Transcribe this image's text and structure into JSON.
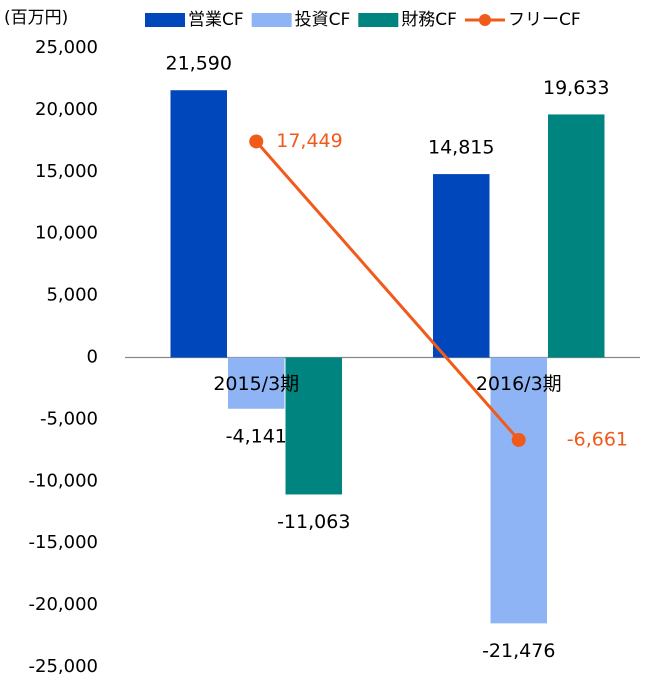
{
  "chart_data": {
    "type": "bar",
    "unit_label": "(百万円)",
    "categories": [
      "2015/3期",
      "2016/3期"
    ],
    "series": [
      {
        "name": "営業CF",
        "color": "#0047bb",
        "type": "bar",
        "values": [
          21590,
          14815
        ],
        "value_labels": [
          "21,590",
          "14,815"
        ]
      },
      {
        "name": "投資CF",
        "color": "#8fb4f5",
        "type": "bar",
        "values": [
          -4141,
          -21476
        ],
        "value_labels": [
          "-4,141",
          "-21,476"
        ]
      },
      {
        "name": "財務CF",
        "color": "#00847f",
        "type": "bar",
        "values": [
          -11063,
          19633
        ],
        "value_labels": [
          "-11,063",
          "19,633"
        ]
      },
      {
        "name": "フリーCF",
        "color": "#f05a1a",
        "type": "line",
        "values": [
          17449,
          -6661
        ],
        "value_labels": [
          "17,449",
          "-6,661"
        ]
      }
    ],
    "ylim": [
      -25000,
      25000
    ],
    "yticks": [
      {
        "value": 25000,
        "label": "25,000"
      },
      {
        "value": 20000,
        "label": "20,000"
      },
      {
        "value": 15000,
        "label": "15,000"
      },
      {
        "value": 10000,
        "label": "10,000"
      },
      {
        "value": 5000,
        "label": "5,000"
      },
      0,
      {
        "value": -5000,
        "label": "-5,000"
      },
      {
        "value": -10000,
        "label": "-10,000"
      },
      {
        "value": -15000,
        "label": "-15,000"
      },
      {
        "value": -20000,
        "label": "-20,000"
      },
      {
        "value": -25000,
        "label": "-25,000"
      }
    ],
    "grid": false
  }
}
